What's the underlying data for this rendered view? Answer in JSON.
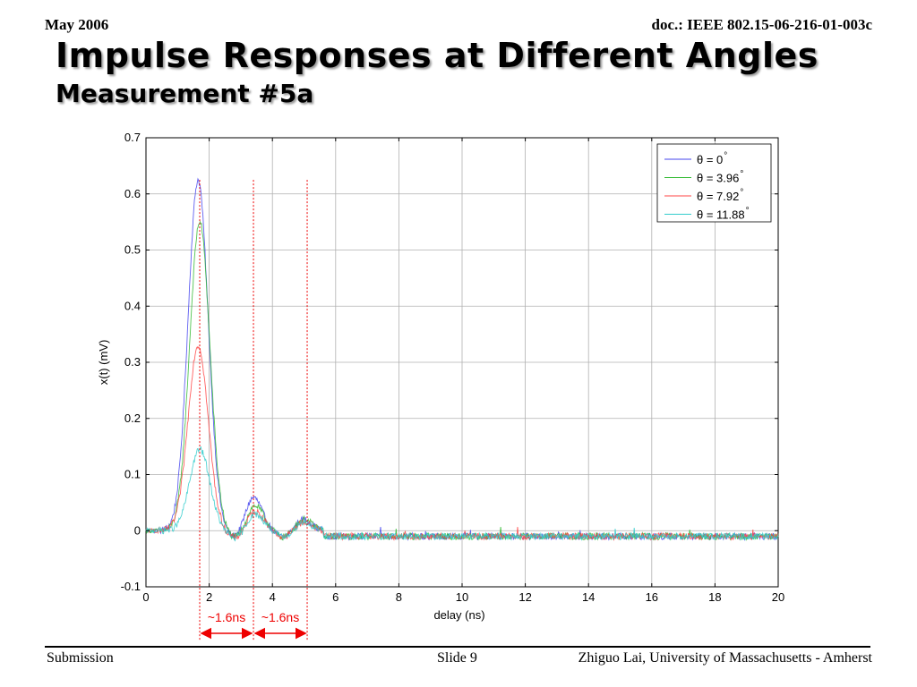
{
  "header": {
    "date": "May 2006",
    "doc_id": "doc.: IEEE 802.15-06-216-01-003c"
  },
  "slide": {
    "title": "Impulse Responses at Different Angles",
    "subtitle": "Measurement #5a"
  },
  "footer": {
    "left": "Submission",
    "center": "Slide 9",
    "right": "Zhiguo Lai, University of Massachusetts - Amherst"
  },
  "colors": {
    "series": [
      "#4444ee",
      "#33bb33",
      "#ff4444",
      "#33cccc"
    ],
    "annotation": "#ee0000",
    "grid": "#b0b0b0"
  },
  "chart_data": {
    "type": "line",
    "title": "",
    "xlabel": "delay (ns)",
    "ylabel": "x(t) (mV)",
    "xlim": [
      0,
      20
    ],
    "ylim": [
      -0.1,
      0.7
    ],
    "xticks": [
      0,
      2,
      4,
      6,
      8,
      10,
      12,
      14,
      16,
      18,
      20
    ],
    "xtick_labels": [
      "0",
      "2",
      "4",
      "6",
      "8",
      "10",
      "12",
      "14",
      "16",
      "18",
      "20"
    ],
    "yticks": [
      -0.1,
      0,
      0.1,
      0.2,
      0.3,
      0.4,
      0.5,
      0.6,
      0.7
    ],
    "ytick_labels": [
      "-0.1",
      "0",
      "0.1",
      "0.2",
      "0.3",
      "0.4",
      "0.5",
      "0.6",
      "0.7"
    ],
    "grid": true,
    "legend_position": "top-right",
    "legend_symbol": "θ",
    "legend_unit": "°",
    "series": [
      {
        "name": "θ = 0",
        "peaks": [
          [
            1.65,
            0.625
          ],
          [
            3.4,
            0.06
          ],
          [
            5.0,
            0.02
          ]
        ]
      },
      {
        "name": "θ = 3.96",
        "peaks": [
          [
            1.7,
            0.55
          ],
          [
            3.45,
            0.045
          ],
          [
            5.0,
            0.02
          ]
        ]
      },
      {
        "name": "θ = 7.92",
        "peaks": [
          [
            1.65,
            0.33
          ],
          [
            3.45,
            0.035
          ],
          [
            5.0,
            0.015
          ]
        ]
      },
      {
        "name": "θ = 11.88",
        "peaks": [
          [
            1.7,
            0.145
          ],
          [
            3.45,
            0.03
          ],
          [
            5.0,
            0.015
          ]
        ]
      }
    ],
    "reference_lines_x": [
      1.7,
      3.4,
      5.1
    ],
    "annotations": [
      {
        "text": "~1.6ns",
        "from": 1.7,
        "to": 3.4
      },
      {
        "text": "~1.6ns",
        "from": 3.4,
        "to": 5.1
      }
    ]
  }
}
